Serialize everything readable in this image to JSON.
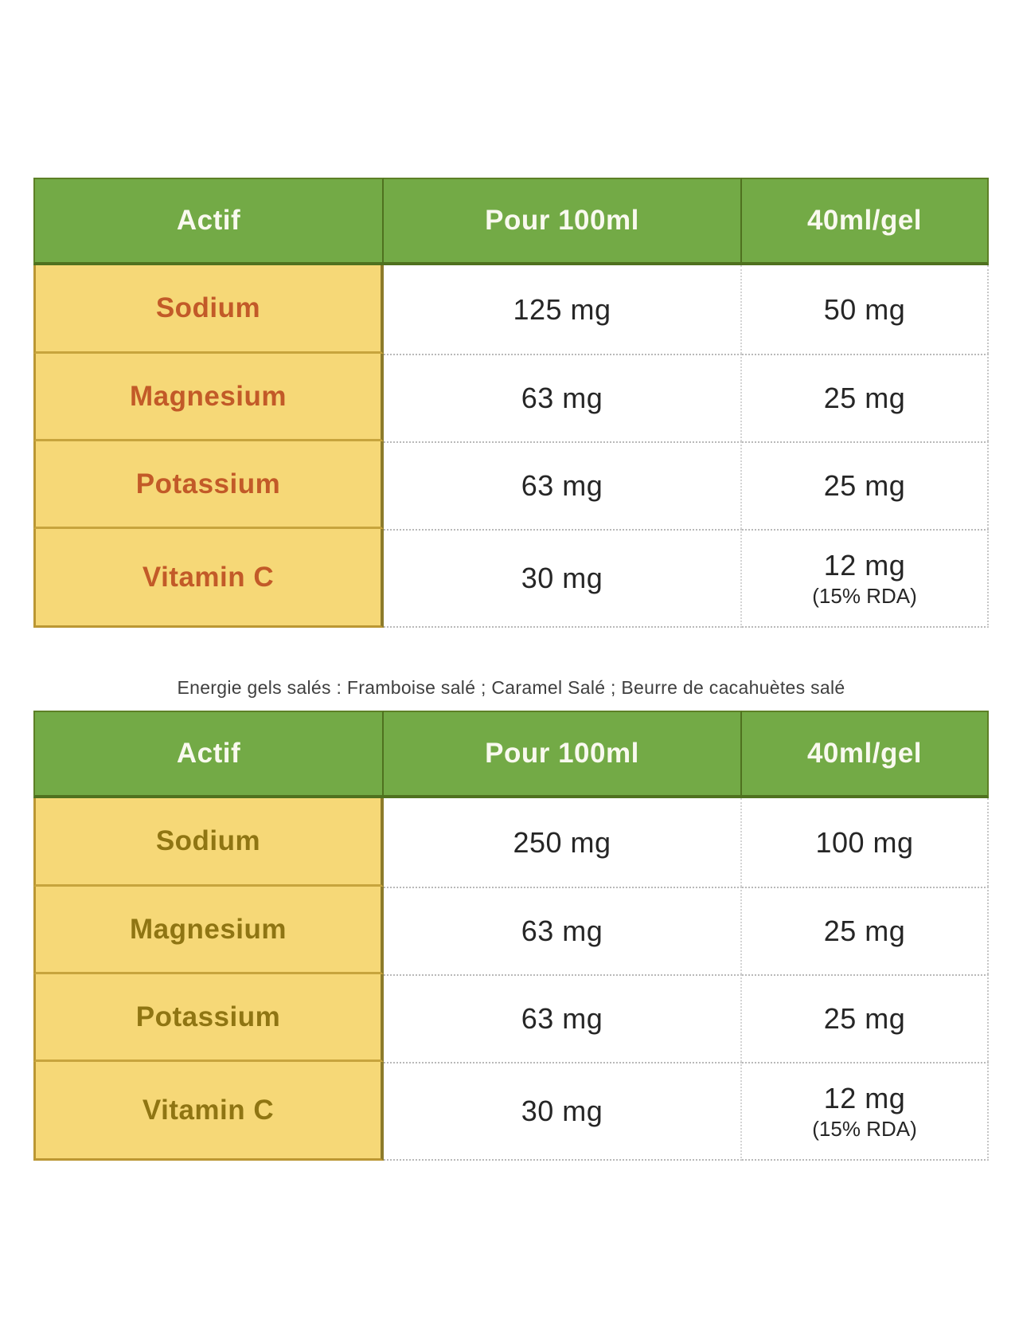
{
  "colors": {
    "background": "#ffffff",
    "header_green": "#73aa46",
    "header_green_dark": "#4f711f",
    "header_green_edge": "#5d8026",
    "header_text": "#f9f9ef",
    "cell_yellow": "#f6d877",
    "yellow_divider": "#c7a43d",
    "yellow_edge": "#bb9733",
    "yellow_right_edge": "#8d7b2b",
    "label_orange": "#c25a28",
    "label_olive": "#8f7513",
    "value_text": "#262626",
    "dotted_border": "#b9b9b9",
    "caption_text": "#3f3f3f"
  },
  "caption": "Energie gels salés : Framboise salé ; Caramel Salé ; Beurre de cacahuètes salé",
  "table1": {
    "headers": [
      "Actif",
      "Pour 100ml",
      "40ml/gel"
    ],
    "rows": [
      {
        "label": "Sodium",
        "per_100ml": "125 mg",
        "per_gel": "50 mg"
      },
      {
        "label": "Magnesium",
        "per_100ml": "63 mg",
        "per_gel": "25 mg"
      },
      {
        "label": "Potassium",
        "per_100ml": "63 mg",
        "per_gel": "25 mg"
      },
      {
        "label": "Vitamin C",
        "per_100ml": "30 mg",
        "per_gel": "12 mg",
        "per_gel_note": "(15% RDA)"
      }
    ]
  },
  "table2": {
    "headers": [
      "Actif",
      "Pour 100ml",
      "40ml/gel"
    ],
    "rows": [
      {
        "label": "Sodium",
        "per_100ml": "250 mg",
        "per_gel": "100 mg"
      },
      {
        "label": "Magnesium",
        "per_100ml": "63 mg",
        "per_gel": "25 mg"
      },
      {
        "label": "Potassium",
        "per_100ml": "63 mg",
        "per_gel": "25 mg"
      },
      {
        "label": "Vitamin C",
        "per_100ml": "30 mg",
        "per_gel": "12 mg",
        "per_gel_note": "(15% RDA)"
      }
    ]
  }
}
